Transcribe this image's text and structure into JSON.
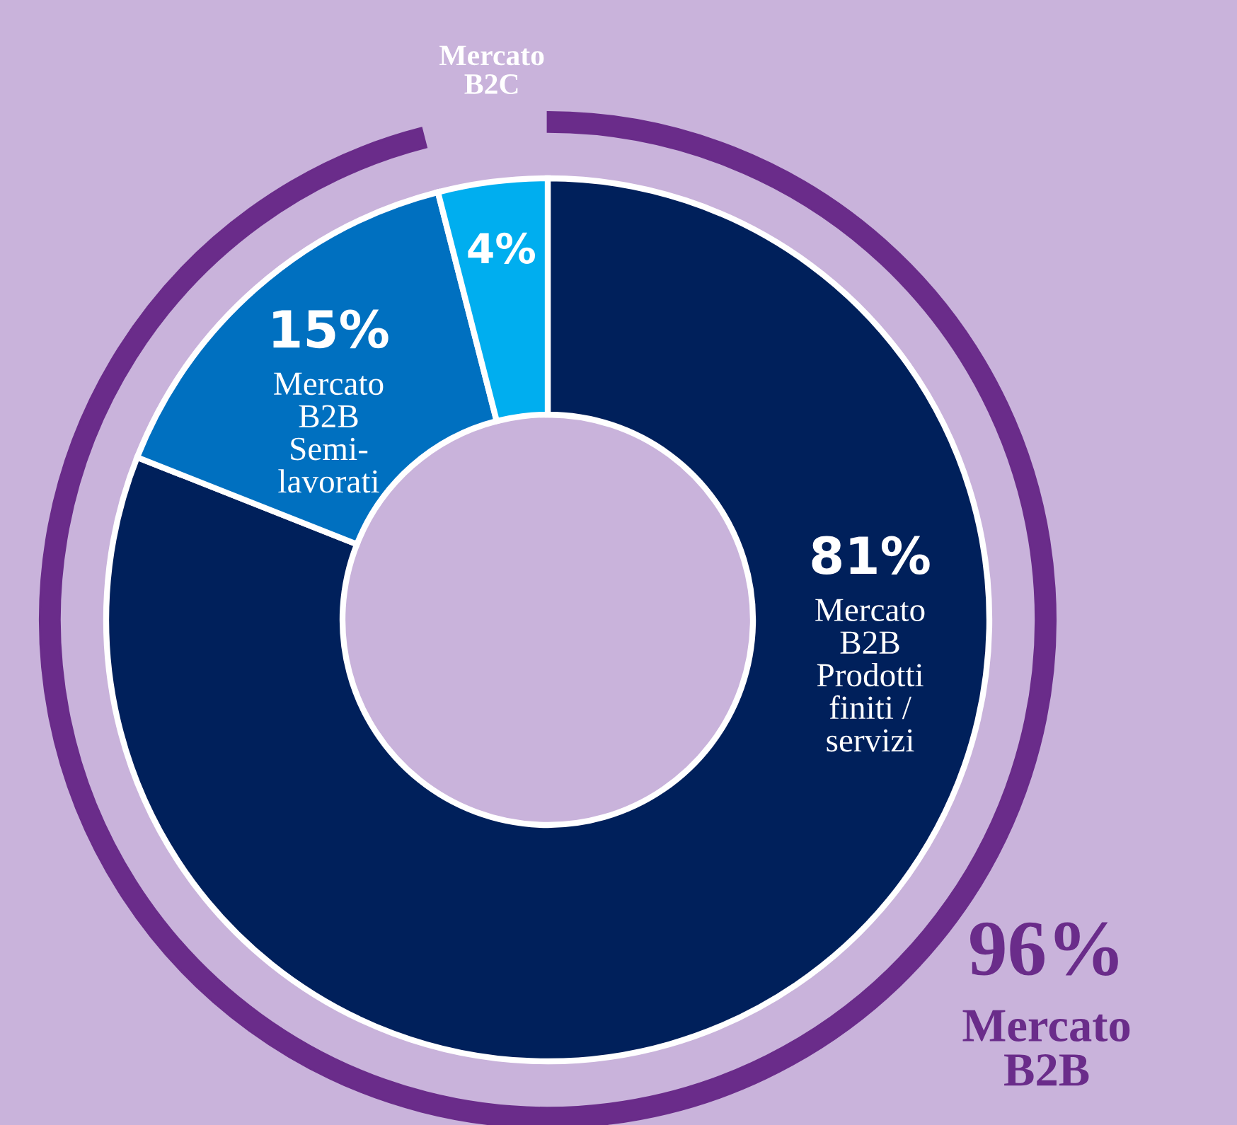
{
  "chart_data": {
    "type": "donut",
    "categories": [
      "Mercato\nB2B\nProdotti\nfiniti /\nservizi",
      "Mercato\nB2B\nSemi-\nlavorati",
      "Mercato\nB2C"
    ],
    "values": [
      81,
      15,
      4
    ],
    "value_labels": [
      "81%",
      "15%",
      "4%"
    ],
    "colors": [
      "#00205b",
      "#0070c0",
      "#00aeef"
    ],
    "annotations": [
      "96%",
      "Mercato\nB2B"
    ],
    "legend": false
  }
}
